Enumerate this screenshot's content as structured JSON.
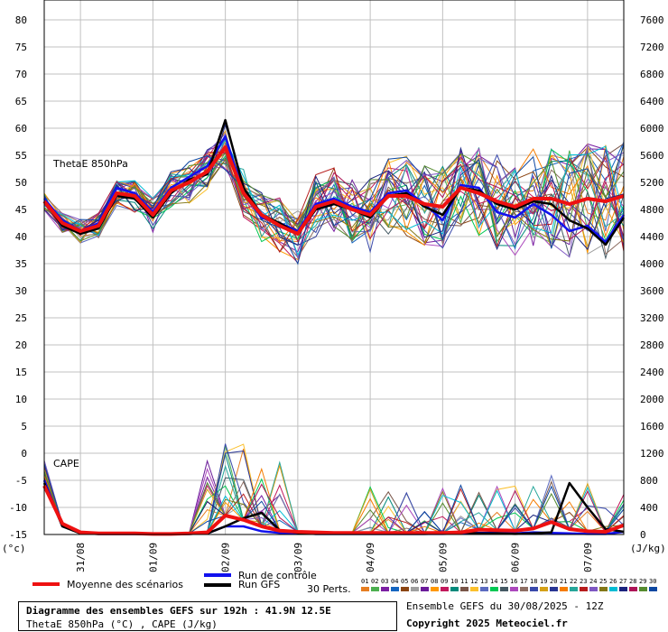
{
  "chart_data": {
    "type": "line",
    "left_axis": {
      "unit": "(°c)",
      "ticks": [
        80,
        75,
        70,
        65,
        60,
        55,
        50,
        45,
        40,
        35,
        30,
        25,
        20,
        15,
        10,
        5,
        0,
        -5,
        -10,
        -15
      ],
      "ylim": [
        -15,
        80
      ]
    },
    "right_axis": {
      "unit": "(J/kg)",
      "ticks": [
        7600,
        7200,
        6800,
        6400,
        6000,
        5600,
        5200,
        4800,
        4400,
        4000,
        3600,
        3200,
        2800,
        2400,
        2000,
        1600,
        1200,
        800,
        400,
        0
      ],
      "ylim": [
        0,
        7600
      ]
    },
    "x_ticks": [
      "31/08",
      "01/09",
      "02/09",
      "03/09",
      "04/09",
      "05/09",
      "06/09",
      "07/09"
    ],
    "x_range_hours": [
      0,
      192
    ],
    "grid": true,
    "panel_labels": {
      "thetae": "ThetaE 850hPa",
      "cape": "CAPE"
    },
    "time_hours": [
      0,
      6,
      12,
      18,
      24,
      30,
      36,
      42,
      48,
      54,
      60,
      66,
      72,
      78,
      84,
      90,
      96,
      102,
      108,
      114,
      120,
      126,
      132,
      138,
      144,
      150,
      156,
      162,
      168,
      174,
      180,
      186,
      192
    ],
    "series": [
      {
        "key": "thetae_mean",
        "values": [
          46.5,
          42.5,
          41,
          42,
          48,
          47.5,
          44,
          48.5,
          50,
          52,
          56.5,
          48,
          44,
          42,
          40.5,
          45.5,
          46.5,
          45,
          44,
          47.5,
          47.5,
          46,
          45.5,
          49,
          48,
          46.5,
          45.5,
          47,
          47,
          46,
          47,
          46.5,
          47.5
        ]
      },
      {
        "key": "thetae_control",
        "values": [
          47,
          43,
          41,
          42.5,
          49,
          48,
          44.5,
          49,
          51,
          53,
          58.5,
          48,
          43.5,
          42.5,
          41,
          46,
          47,
          45.5,
          44.5,
          48,
          48.5,
          46,
          43,
          49.5,
          49,
          44.5,
          43.5,
          46,
          44,
          41,
          42,
          39,
          44
        ]
      },
      {
        "key": "thetae_gfs",
        "values": [
          46.5,
          42,
          40.5,
          41.5,
          47.5,
          47,
          43.5,
          48,
          50.5,
          51.5,
          61.5,
          49,
          44,
          42.5,
          40.5,
          45,
          46,
          45,
          43.5,
          47.5,
          48,
          45.5,
          44,
          49,
          48.5,
          46,
          45,
          46.5,
          46,
          43,
          41.5,
          38.5,
          43.5
        ]
      },
      {
        "key": "cape_mean",
        "values": [
          -6,
          -13,
          -14.6,
          -14.8,
          -14.8,
          -14.8,
          -14.9,
          -14.9,
          -14.8,
          -14.6,
          -11.5,
          -12.3,
          -13.5,
          -14.3,
          -14.5,
          -14.6,
          -14.7,
          -14.7,
          -14.7,
          -14.7,
          -14.7,
          -14.7,
          -14.7,
          -14.6,
          -14.1,
          -14.2,
          -14.3,
          -13.9,
          -12.7,
          -14,
          -14.4,
          -14.5,
          -13.3
        ]
      },
      {
        "key": "cape_control",
        "values": [
          -5,
          -13.5,
          -14.7,
          -14.9,
          -14.9,
          -14.9,
          -14.9,
          -14.9,
          -14.9,
          -14.8,
          -13.5,
          -13.5,
          -14.4,
          -14.7,
          -14.8,
          -14.9,
          -14.9,
          -14.9,
          -14.9,
          -14.9,
          -14.9,
          -14.9,
          -14.9,
          -14.8,
          -14.7,
          -14.7,
          -14.8,
          -14.6,
          -14.7,
          -14.8,
          -14.9,
          -14.9,
          -14.5
        ]
      },
      {
        "key": "cape_gfs",
        "values": [
          -5.5,
          -13.5,
          -14.8,
          -14.9,
          -14.9,
          -14.9,
          -14.9,
          -14.9,
          -14.9,
          -14.8,
          -13.5,
          -12,
          -11,
          -14.2,
          -14.7,
          -14.9,
          -14.9,
          -14.9,
          -14.9,
          -14.9,
          -14.9,
          -14.9,
          -14.8,
          -14.6,
          -14.8,
          -14.8,
          -14.9,
          -14.8,
          -14.6,
          -5.5,
          -10,
          -14,
          -14.5
        ]
      }
    ],
    "ensemble_member_count": 30,
    "ensemble_colors": [
      "#e67e22",
      "#4caf50",
      "#7b1fa2",
      "#1565c0",
      "#8b4513",
      "#9e9e9e",
      "#6a1b9a",
      "#ff9800",
      "#c2185b",
      "#00897b",
      "#795548",
      "#fbc02d",
      "#5c6bc0",
      "#00c853",
      "#455a64",
      "#ab47bc",
      "#8d6e63",
      "#3949ab",
      "#d4a017",
      "#283593",
      "#f57c00",
      "#26a69a",
      "#b71c1c",
      "#7e57c2",
      "#827717",
      "#00bcd4",
      "#1a237e",
      "#ad1457",
      "#558b2f",
      "#0d47a1"
    ]
  },
  "legend": {
    "mean_label": "Moyenne des scénarios",
    "mean_color": "#ee1111",
    "control_label": "Run de contrôle",
    "control_color": "#1111ee",
    "gfs_label": "Run GFS",
    "gfs_color": "#000000",
    "perts_label": "30 Perts.",
    "pert_numbers": [
      "01",
      "02",
      "03",
      "04",
      "05",
      "06",
      "07",
      "08",
      "09",
      "10",
      "11",
      "12",
      "13",
      "14",
      "15",
      "16",
      "17",
      "18",
      "19",
      "20",
      "21",
      "22",
      "23",
      "24",
      "25",
      "26",
      "27",
      "28",
      "29",
      "30"
    ]
  },
  "footer": {
    "title": "Diagramme des ensembles GEFS sur 192h : 41.9N 12.5E",
    "subtitle": "ThetaE 850hPa (°C) , CAPE (J/kg)",
    "run_info": "Ensemble GEFS du 30/08/2025 - 12Z",
    "copyright": "Copyright 2025 Meteociel.fr"
  }
}
